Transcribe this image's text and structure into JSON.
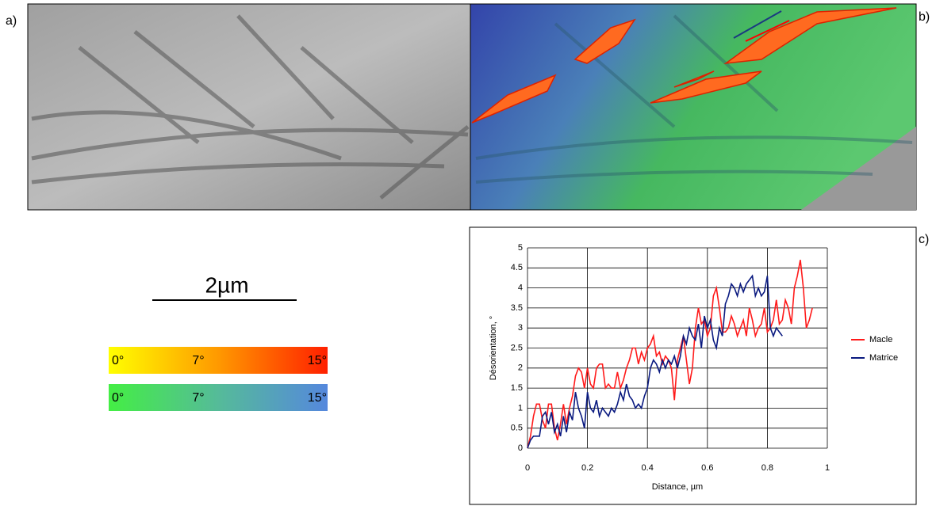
{
  "panel_labels": [
    "a)",
    "b)",
    "c)"
  ],
  "scale_bar": "2µm",
  "color_scales": [
    {
      "colors": [
        "#ffff00",
        "#ff9900",
        "#ff2000"
      ],
      "labels": [
        "0°",
        "7°",
        "15°"
      ]
    },
    {
      "colors": [
        "#44ee44",
        "#55bb99",
        "#5588dd"
      ],
      "labels": [
        "0°",
        "7°",
        "15°"
      ]
    }
  ],
  "chart_data": {
    "type": "line",
    "xlabel": "Distance, µm",
    "ylabel": "Désorientation, °",
    "xlim": [
      0,
      1
    ],
    "xticks": [
      0,
      0.2,
      0.4,
      0.6,
      0.8,
      1
    ],
    "ylim": [
      0,
      5
    ],
    "yticks": [
      0,
      0.5,
      1,
      1.5,
      2,
      2.5,
      3,
      3.5,
      4,
      4.5,
      5
    ],
    "grid": true,
    "legend": "right",
    "series": [
      {
        "name": "Macle",
        "color": "#ff1a1a",
        "x": [
          0,
          0.01,
          0.02,
          0.03,
          0.04,
          0.05,
          0.06,
          0.07,
          0.08,
          0.09,
          0.1,
          0.11,
          0.12,
          0.13,
          0.14,
          0.15,
          0.16,
          0.17,
          0.18,
          0.19,
          0.2,
          0.21,
          0.22,
          0.23,
          0.24,
          0.25,
          0.26,
          0.27,
          0.28,
          0.29,
          0.3,
          0.31,
          0.32,
          0.33,
          0.34,
          0.35,
          0.36,
          0.37,
          0.38,
          0.39,
          0.4,
          0.41,
          0.42,
          0.43,
          0.44,
          0.45,
          0.46,
          0.47,
          0.48,
          0.49,
          0.5,
          0.51,
          0.52,
          0.53,
          0.54,
          0.55,
          0.56,
          0.57,
          0.58,
          0.59,
          0.6,
          0.61,
          0.62,
          0.63,
          0.64,
          0.65,
          0.66,
          0.67,
          0.68,
          0.69,
          0.7,
          0.71,
          0.72,
          0.73,
          0.74,
          0.75,
          0.76,
          0.77,
          0.78,
          0.79,
          0.8,
          0.81,
          0.82,
          0.83,
          0.84,
          0.85,
          0.86,
          0.87,
          0.88,
          0.89,
          0.9,
          0.91,
          0.92,
          0.93,
          0.94,
          0.95
        ],
        "values": [
          0,
          0.3,
          0.8,
          1.1,
          1.1,
          0.7,
          0.5,
          1.1,
          1.1,
          0.5,
          0.2,
          0.6,
          1.1,
          0.6,
          1.0,
          1.3,
          1.8,
          2.0,
          1.9,
          1.5,
          2.0,
          1.6,
          1.5,
          2.0,
          2.1,
          2.1,
          1.5,
          1.6,
          1.5,
          1.5,
          1.9,
          1.5,
          1.7,
          2.0,
          2.2,
          2.5,
          2.5,
          2.1,
          2.4,
          2.2,
          2.5,
          2.6,
          2.8,
          2.3,
          2.4,
          2.1,
          2.3,
          2.2,
          2.0,
          1.2,
          2.2,
          2.5,
          2.8,
          2.2,
          1.6,
          2.0,
          3.0,
          3.5,
          3.1,
          3.2,
          2.8,
          3.0,
          3.8,
          4.0,
          3.5,
          2.9,
          2.9,
          3.0,
          3.3,
          3.1,
          2.8,
          3.0,
          3.2,
          2.8,
          3.5,
          3.2,
          2.8,
          3.0,
          3.1,
          3.5,
          2.9,
          3.0,
          3.2,
          3.7,
          3.1,
          3.2,
          3.7,
          3.5,
          3.1,
          4.0,
          4.3,
          4.7,
          4.0,
          3.0,
          3.2,
          3.5
        ]
      },
      {
        "name": "Matrice",
        "color": "#0a1a80",
        "x": [
          0,
          0.01,
          0.02,
          0.03,
          0.04,
          0.05,
          0.06,
          0.07,
          0.08,
          0.09,
          0.1,
          0.11,
          0.12,
          0.13,
          0.14,
          0.15,
          0.16,
          0.17,
          0.18,
          0.19,
          0.2,
          0.21,
          0.22,
          0.23,
          0.24,
          0.25,
          0.26,
          0.27,
          0.28,
          0.29,
          0.3,
          0.31,
          0.32,
          0.33,
          0.34,
          0.35,
          0.36,
          0.37,
          0.38,
          0.39,
          0.4,
          0.41,
          0.42,
          0.43,
          0.44,
          0.45,
          0.46,
          0.47,
          0.48,
          0.49,
          0.5,
          0.51,
          0.52,
          0.53,
          0.54,
          0.55,
          0.56,
          0.57,
          0.58,
          0.59,
          0.6,
          0.61,
          0.62,
          0.63,
          0.64,
          0.65,
          0.66,
          0.67,
          0.68,
          0.69,
          0.7,
          0.71,
          0.72,
          0.73,
          0.74,
          0.75,
          0.76,
          0.77,
          0.78,
          0.79,
          0.8,
          0.81,
          0.82,
          0.83,
          0.84,
          0.85
        ],
        "values": [
          0,
          0.2,
          0.3,
          0.3,
          0.3,
          0.8,
          0.9,
          0.6,
          0.9,
          0.4,
          0.6,
          0.3,
          0.8,
          0.4,
          0.9,
          0.7,
          1.4,
          1.0,
          0.8,
          0.5,
          1.4,
          1.0,
          0.9,
          1.2,
          0.8,
          1.0,
          0.9,
          0.8,
          1.0,
          0.9,
          1.1,
          1.4,
          1.2,
          1.6,
          1.3,
          1.2,
          1.0,
          1.1,
          1.0,
          1.3,
          1.5,
          2.0,
          2.2,
          2.1,
          1.9,
          2.2,
          2.0,
          2.2,
          2.1,
          2.3,
          2.0,
          2.3,
          2.8,
          2.6,
          3.0,
          2.8,
          2.7,
          3.1,
          2.5,
          3.3,
          3.0,
          3.2,
          2.7,
          2.5,
          3.0,
          2.8,
          3.6,
          3.8,
          4.1,
          4.0,
          3.8,
          4.1,
          3.9,
          4.1,
          4.2,
          4.3,
          3.8,
          4.0,
          3.8,
          3.9,
          4.3,
          3.0,
          2.8,
          3.0,
          2.9,
          2.8
        ]
      }
    ]
  }
}
